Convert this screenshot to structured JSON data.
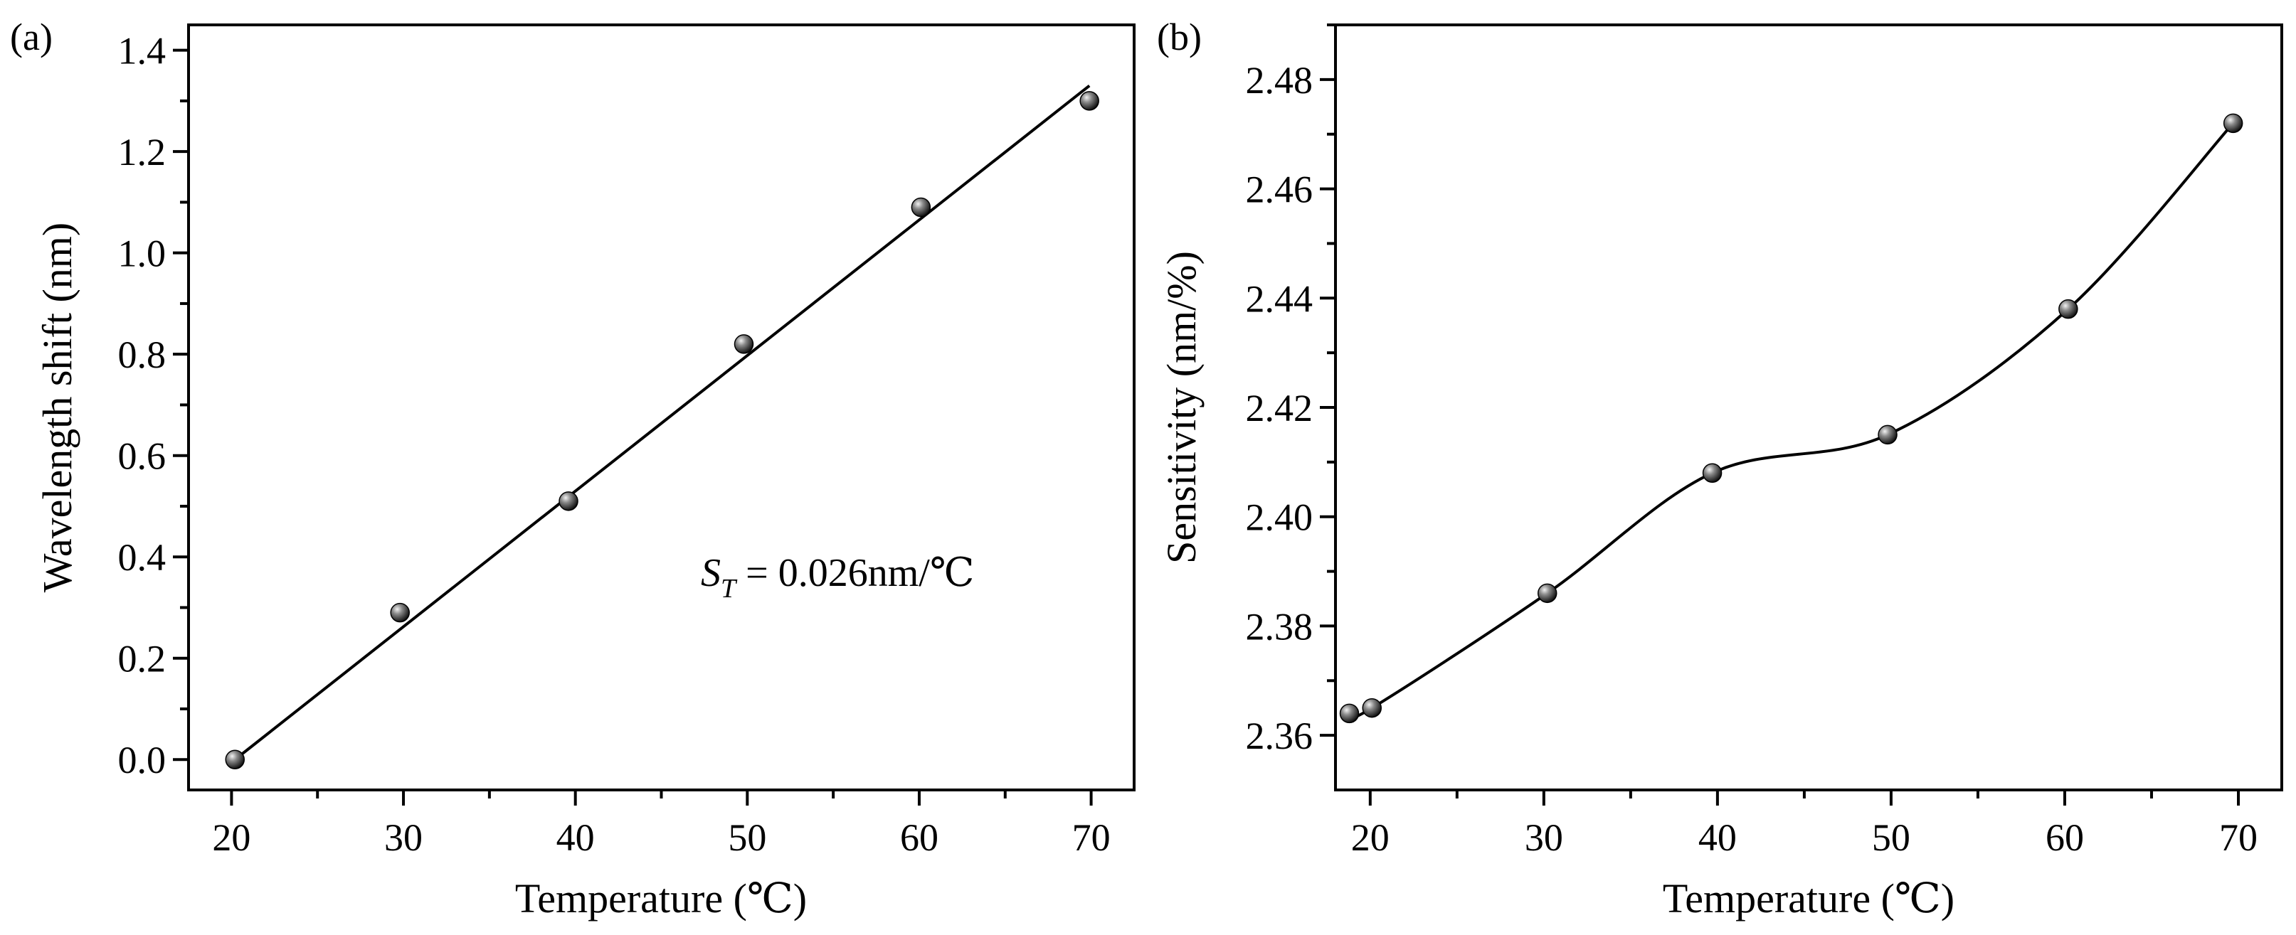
{
  "chart_data": [
    {
      "panel": "a",
      "panel_label": "(a)",
      "type": "scatter",
      "fit": "linear",
      "xlabel": "Temperature (℃)",
      "ylabel": "Wavelength shift (nm)",
      "xlim": [
        17.5,
        72.5
      ],
      "ylim": [
        -0.06,
        1.45
      ],
      "xticks": [
        20,
        30,
        40,
        50,
        60,
        70
      ],
      "yticks": [
        0.0,
        0.2,
        0.4,
        0.6,
        0.8,
        1.0,
        1.2,
        1.4
      ],
      "ytick_labels": [
        "0.0",
        "0.2",
        "0.4",
        "0.6",
        "0.8",
        "1.0",
        "1.2",
        "1.4"
      ],
      "x": [
        20.2,
        29.8,
        39.6,
        49.8,
        60.1,
        69.9
      ],
      "y": [
        0.0,
        0.29,
        0.51,
        0.82,
        1.09,
        1.3
      ],
      "fit_line": {
        "x": [
          20.2,
          69.9
        ],
        "y": [
          0.0,
          1.33
        ]
      },
      "annotation": {
        "symbol": "S",
        "subscript": "T",
        "text": " = 0.026nm/℃"
      }
    },
    {
      "panel": "b",
      "panel_label": "(b)",
      "type": "scatter",
      "fit": "smooth",
      "xlabel": "Temperature (℃)",
      "ylabel": "Sensitivity (nm/%)",
      "xlim": [
        18.0,
        72.5
      ],
      "ylim": [
        2.35,
        2.49
      ],
      "xticks": [
        20,
        30,
        40,
        50,
        60,
        70
      ],
      "yticks": [
        2.36,
        2.38,
        2.4,
        2.42,
        2.44,
        2.46,
        2.48
      ],
      "ytick_labels": [
        "2.36",
        "2.38",
        "2.40",
        "2.42",
        "2.44",
        "2.46",
        "2.48"
      ],
      "x": [
        18.8,
        20.1,
        30.2,
        39.7,
        49.8,
        60.2,
        69.7
      ],
      "y": [
        2.364,
        2.365,
        2.386,
        2.408,
        2.415,
        2.438,
        2.472
      ]
    }
  ]
}
